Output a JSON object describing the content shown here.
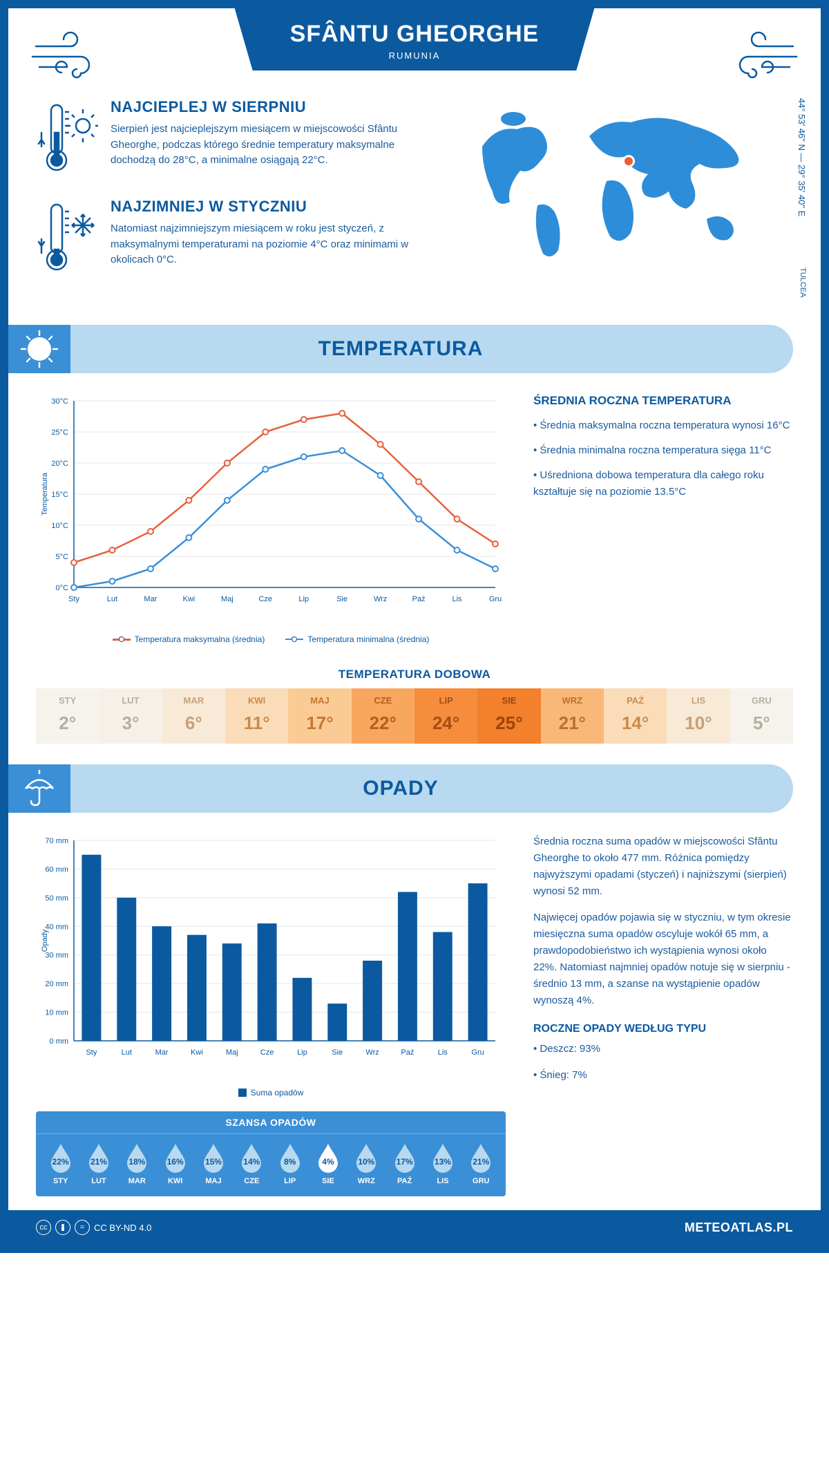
{
  "header": {
    "title": "SFÂNTU GHEORGHE",
    "subtitle": "RUMUNIA"
  },
  "intro": {
    "hot": {
      "title": "NAJCIEPLEJ W SIERPNIU",
      "text": "Sierpień jest najcieplejszym miesiącem w miejscowości Sfântu Gheorghe, podczas którego średnie temperatury maksymalne dochodzą do 28°C, a minimalne osiągają 22°C."
    },
    "cold": {
      "title": "NAJZIMNIEJ W STYCZNIU",
      "text": "Natomiast najzimniejszym miesiącem w roku jest styczeń, z maksymalnymi temperaturami na poziomie 4°C oraz minimami w okolicach 0°C."
    },
    "coords": "44° 53' 46\" N — 29° 35' 40\" E",
    "region": "TULCEA",
    "map_marker": {
      "lat_pct": 38,
      "lon_pct": 55
    }
  },
  "months": [
    "Sty",
    "Lut",
    "Mar",
    "Kwi",
    "Maj",
    "Cze",
    "Lip",
    "Sie",
    "Wrz",
    "Paź",
    "Lis",
    "Gru"
  ],
  "months_upper": [
    "STY",
    "LUT",
    "MAR",
    "KWI",
    "MAJ",
    "CZE",
    "LIP",
    "SIE",
    "WRZ",
    "PAŹ",
    "LIS",
    "GRU"
  ],
  "temp_section": {
    "title": "TEMPERATURA",
    "chart": {
      "ylabel": "Temperatura",
      "ylim": [
        0,
        30
      ],
      "yticks": [
        0,
        5,
        10,
        15,
        20,
        25,
        30
      ],
      "yticklabels": [
        "0°C",
        "5°C",
        "10°C",
        "15°C",
        "20°C",
        "25°C",
        "30°C"
      ],
      "series": {
        "max": {
          "label": "Temperatura maksymalna (średnia)",
          "color": "#e8603c",
          "values": [
            4,
            6,
            9,
            14,
            20,
            25,
            27,
            28,
            23,
            17,
            11,
            7
          ]
        },
        "min": {
          "label": "Temperatura minimalna (średnia)",
          "color": "#3b8fd6",
          "values": [
            0,
            1,
            3,
            8,
            14,
            19,
            21,
            22,
            18,
            11,
            6,
            3
          ]
        }
      },
      "grid_color": "#e0e5ea",
      "axis_color": "#0b5aa0"
    },
    "stats": {
      "title": "ŚREDNIA ROCZNA TEMPERATURA",
      "bullets": [
        "• Średnia maksymalna roczna temperatura wynosi 16°C",
        "• Średnia minimalna roczna temperatura sięga 11°C",
        "• Uśredniona dobowa temperatura dla całego roku kształtuje się na poziomie 13.5°C"
      ]
    },
    "daily": {
      "title": "TEMPERATURA DOBOWA",
      "values": [
        "2°",
        "3°",
        "6°",
        "11°",
        "17°",
        "22°",
        "24°",
        "25°",
        "21°",
        "14°",
        "10°",
        "5°"
      ],
      "bg_colors": [
        "#f6f3ed",
        "#f6f0e8",
        "#f9e9d7",
        "#fbdcb9",
        "#fbcb95",
        "#f9a65f",
        "#f58d3d",
        "#f2802c",
        "#f9b877",
        "#fbdcb9",
        "#f9e9d7",
        "#f6f3ed"
      ],
      "label_colors": [
        "#b6aea0",
        "#b6aea0",
        "#c4a178",
        "#c98b4a",
        "#c47832",
        "#b45f1d",
        "#a34f12",
        "#9c4409",
        "#b9712e",
        "#c98b4a",
        "#c4a178",
        "#b6aea0"
      ]
    }
  },
  "precip_section": {
    "title": "OPADY",
    "chart": {
      "ylabel": "Opady",
      "ylim": [
        0,
        70
      ],
      "yticks": [
        0,
        10,
        20,
        30,
        40,
        50,
        60,
        70
      ],
      "yticklabels": [
        "0 mm",
        "10 mm",
        "20 mm",
        "30 mm",
        "40 mm",
        "50 mm",
        "60 mm",
        "70 mm"
      ],
      "values": [
        65,
        50,
        40,
        37,
        34,
        41,
        22,
        13,
        28,
        52,
        38,
        55
      ],
      "bar_color": "#0b5aa0",
      "legend": "Suma opadów",
      "grid_color": "#e0e5ea"
    },
    "text": [
      "Średnia roczna suma opadów w miejscowości Sfântu Gheorghe to około 477 mm. Różnica pomiędzy najwyższymi opadami (styczeń) i najniższymi (sierpień) wynosi 52 mm.",
      "Najwięcej opadów pojawia się w styczniu, w tym okresie miesięczna suma opadów oscyluje wokół 65 mm, a prawdopodobieństwo ich wystąpienia wynosi około 22%. Natomiast najmniej opadów notuje się w sierpniu - średnio 13 mm, a szanse na wystąpienie opadów wynoszą 4%."
    ],
    "chance": {
      "title": "SZANSA OPADÓW",
      "values": [
        "22%",
        "21%",
        "18%",
        "16%",
        "15%",
        "14%",
        "8%",
        "4%",
        "10%",
        "17%",
        "13%",
        "21%"
      ],
      "min_index": 7,
      "drop_fill": "#b8d9ef",
      "drop_min_fill": "#ffffff",
      "text_color": "#0b5aa0"
    },
    "by_type": {
      "title": "ROCZNE OPADY WEDŁUG TYPU",
      "items": [
        "• Deszcz: 93%",
        "• Śnieg: 7%"
      ]
    }
  },
  "footer": {
    "license": "CC BY-ND 4.0",
    "site": "METEOATLAS.PL"
  },
  "colors": {
    "primary": "#0b5aa0",
    "light_blue": "#b8d9ef",
    "mid_blue": "#3b8fd6",
    "map_fill": "#2e8dd8"
  }
}
